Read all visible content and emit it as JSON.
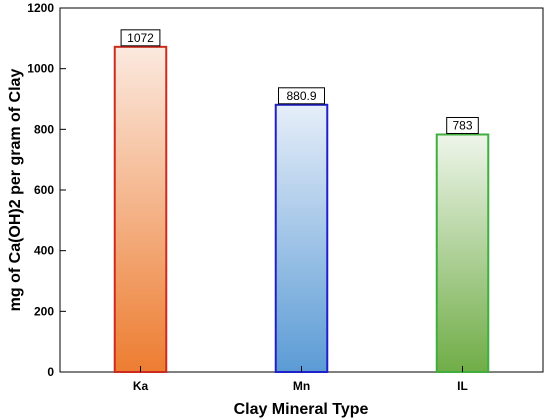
{
  "chart_data": {
    "type": "bar",
    "title": "",
    "xlabel": "Clay Mineral Type",
    "ylabel": "mg of Ca(OH)2 per gram of Clay",
    "categories": [
      "Ka",
      "Mn",
      "IL"
    ],
    "values": [
      1072,
      880.9,
      783
    ],
    "data_labels": [
      "1072",
      "880.9",
      "783"
    ],
    "ylim": [
      0,
      1200
    ],
    "yticks": [
      0,
      200,
      400,
      600,
      800,
      1000,
      1200
    ],
    "grid": false,
    "legend": "none",
    "bar_colors": [
      {
        "stroke": "#cc2b1d",
        "top": "#fbe9df",
        "bottom": "#ed7d31"
      },
      {
        "stroke": "#2020c8",
        "top": "#e6eef9",
        "bottom": "#5b9bd5"
      },
      {
        "stroke": "#3fae3f",
        "top": "#eef5ea",
        "bottom": "#70ad47"
      }
    ]
  }
}
